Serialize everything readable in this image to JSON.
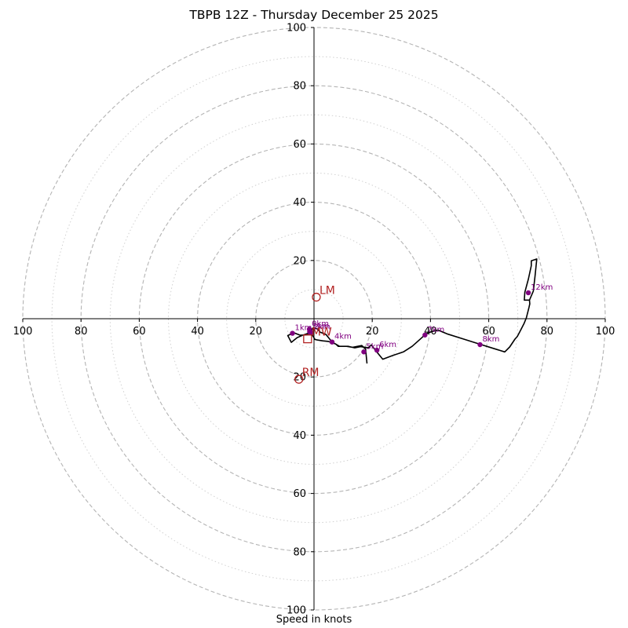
{
  "chart_data": {
    "type": "hodograph",
    "title": "TBPB 12Z - Thursday December 25 2025",
    "xlabel": "Speed in knots",
    "range": [
      -100,
      100
    ],
    "major_rings": [
      20,
      40,
      60,
      80,
      100
    ],
    "minor_rings": [
      10,
      30,
      50,
      70,
      90
    ],
    "x_tick_labels": [
      {
        "v": -100,
        "t": "100"
      },
      {
        "v": -80,
        "t": "80"
      },
      {
        "v": -60,
        "t": "60"
      },
      {
        "v": -40,
        "t": "40"
      },
      {
        "v": -20,
        "t": "20"
      },
      {
        "v": 20,
        "t": "20"
      },
      {
        "v": 40,
        "t": "40"
      },
      {
        "v": 60,
        "t": "60"
      },
      {
        "v": 80,
        "t": "80"
      },
      {
        "v": 100,
        "t": "100"
      }
    ],
    "y_tick_labels": [
      {
        "v": 100,
        "t": "100"
      },
      {
        "v": 80,
        "t": "80"
      },
      {
        "v": 60,
        "t": "60"
      },
      {
        "v": 40,
        "t": "40"
      },
      {
        "v": 20,
        "t": "20"
      },
      {
        "v": -20,
        "t": "20"
      },
      {
        "v": -40,
        "t": "40"
      },
      {
        "v": -60,
        "t": "60"
      },
      {
        "v": -80,
        "t": "80"
      },
      {
        "v": -100,
        "t": "100"
      }
    ],
    "trace": [
      [
        18.2,
        -15.4
      ],
      [
        17.7,
        -10.4
      ],
      [
        16.4,
        -9.2
      ],
      [
        13.3,
        -9.8
      ],
      [
        11.2,
        -9.5
      ],
      [
        8.3,
        -9.5
      ],
      [
        7.5,
        -8.7
      ],
      [
        4.9,
        -7.8
      ],
      [
        3.0,
        -7.6
      ],
      [
        1.1,
        -7.3
      ],
      [
        0.3,
        -7.1
      ],
      [
        -0.5,
        -5.7
      ],
      [
        -1.3,
        -5.5
      ],
      [
        -2.1,
        -5.5
      ],
      [
        -4.7,
        -5.7
      ],
      [
        -7.0,
        -4.8
      ],
      [
        -7.4,
        -5.0
      ],
      [
        -9.0,
        -5.8
      ],
      [
        -7.8,
        -8.1
      ],
      [
        -6.8,
        -7.3
      ],
      [
        -5.8,
        -6.5
      ],
      [
        -3.7,
        -5.6
      ],
      [
        -2.0,
        -5.0
      ],
      [
        -1.6,
        -4.4
      ],
      [
        -1.3,
        -3.7
      ],
      [
        -1.1,
        -3.6
      ],
      [
        -0.8,
        -3.8
      ],
      [
        -0.3,
        -3.1
      ],
      [
        0.5,
        -3.3
      ],
      [
        1.3,
        -3.6
      ],
      [
        2.1,
        -4.6
      ],
      [
        4.1,
        -5.4
      ],
      [
        6.2,
        -8.0
      ],
      [
        8.8,
        -9.5
      ],
      [
        11.7,
        -9.5
      ],
      [
        14.0,
        -10.0
      ],
      [
        16.0,
        -9.6
      ],
      [
        18.6,
        -10.0
      ],
      [
        19.7,
        -9.0
      ],
      [
        21.0,
        -10.7
      ],
      [
        23.6,
        -13.9
      ],
      [
        27.1,
        -12.6
      ],
      [
        30.7,
        -11.4
      ],
      [
        33.7,
        -9.5
      ],
      [
        36.4,
        -7.1
      ],
      [
        38.0,
        -5.6
      ],
      [
        38.9,
        -5.0
      ],
      [
        40.5,
        -4.4
      ],
      [
        42.6,
        -3.9
      ],
      [
        46.0,
        -5.3
      ],
      [
        51.1,
        -6.9
      ],
      [
        57.1,
        -8.8
      ],
      [
        61.6,
        -10.2
      ],
      [
        65.5,
        -11.4
      ],
      [
        67.2,
        -9.7
      ],
      [
        69.0,
        -7.0
      ],
      [
        69.8,
        -6.1
      ],
      [
        70.8,
        -4.2
      ],
      [
        72.1,
        -1.7
      ],
      [
        72.9,
        0.3
      ],
      [
        73.8,
        3.8
      ],
      [
        74.1,
        5.1
      ],
      [
        74.0,
        6.4
      ],
      [
        72.2,
        6.4
      ],
      [
        72.4,
        9.1
      ],
      [
        73.6,
        13.6
      ],
      [
        74.6,
        18.2
      ],
      [
        74.6,
        19.9
      ],
      [
        76.5,
        20.5
      ],
      [
        75.9,
        14.7
      ],
      [
        75.3,
        9.5
      ],
      [
        74.0,
        6.4
      ]
    ],
    "height_points": [
      {
        "label": "0km",
        "u": -1.6,
        "v": -3.6
      },
      {
        "label": "1km",
        "u": -7.4,
        "v": -5.0
      },
      {
        "label": "2km",
        "u": -1.0,
        "v": -4.7
      },
      {
        "label": "3km",
        "u": -1.5,
        "v": -4.5
      },
      {
        "label": "4km",
        "u": 6.2,
        "v": -8.0
      },
      {
        "label": "5km",
        "u": 17.1,
        "v": -11.4
      },
      {
        "label": "6km",
        "u": 21.6,
        "v": -10.8
      },
      {
        "label": "7km",
        "u": 38.1,
        "v": -5.6
      },
      {
        "label": "8km",
        "u": 57.0,
        "v": -8.9
      },
      {
        "label": "12km",
        "u": 73.6,
        "v": 8.9
      }
    ],
    "storm_motion": [
      {
        "label": "LM",
        "u": 0.8,
        "v": 7.4,
        "marker": "circle"
      },
      {
        "label": "RM",
        "u": -5.2,
        "v": -20.8,
        "marker": "circle"
      },
      {
        "label": "MW",
        "u": -2.2,
        "v": -6.9,
        "marker": "square"
      }
    ],
    "colors": {
      "trace": "#000000",
      "height_points": "#800080",
      "storm_motion": "#b22222",
      "rings": "#b4b4b4",
      "axes": "#000000"
    }
  }
}
